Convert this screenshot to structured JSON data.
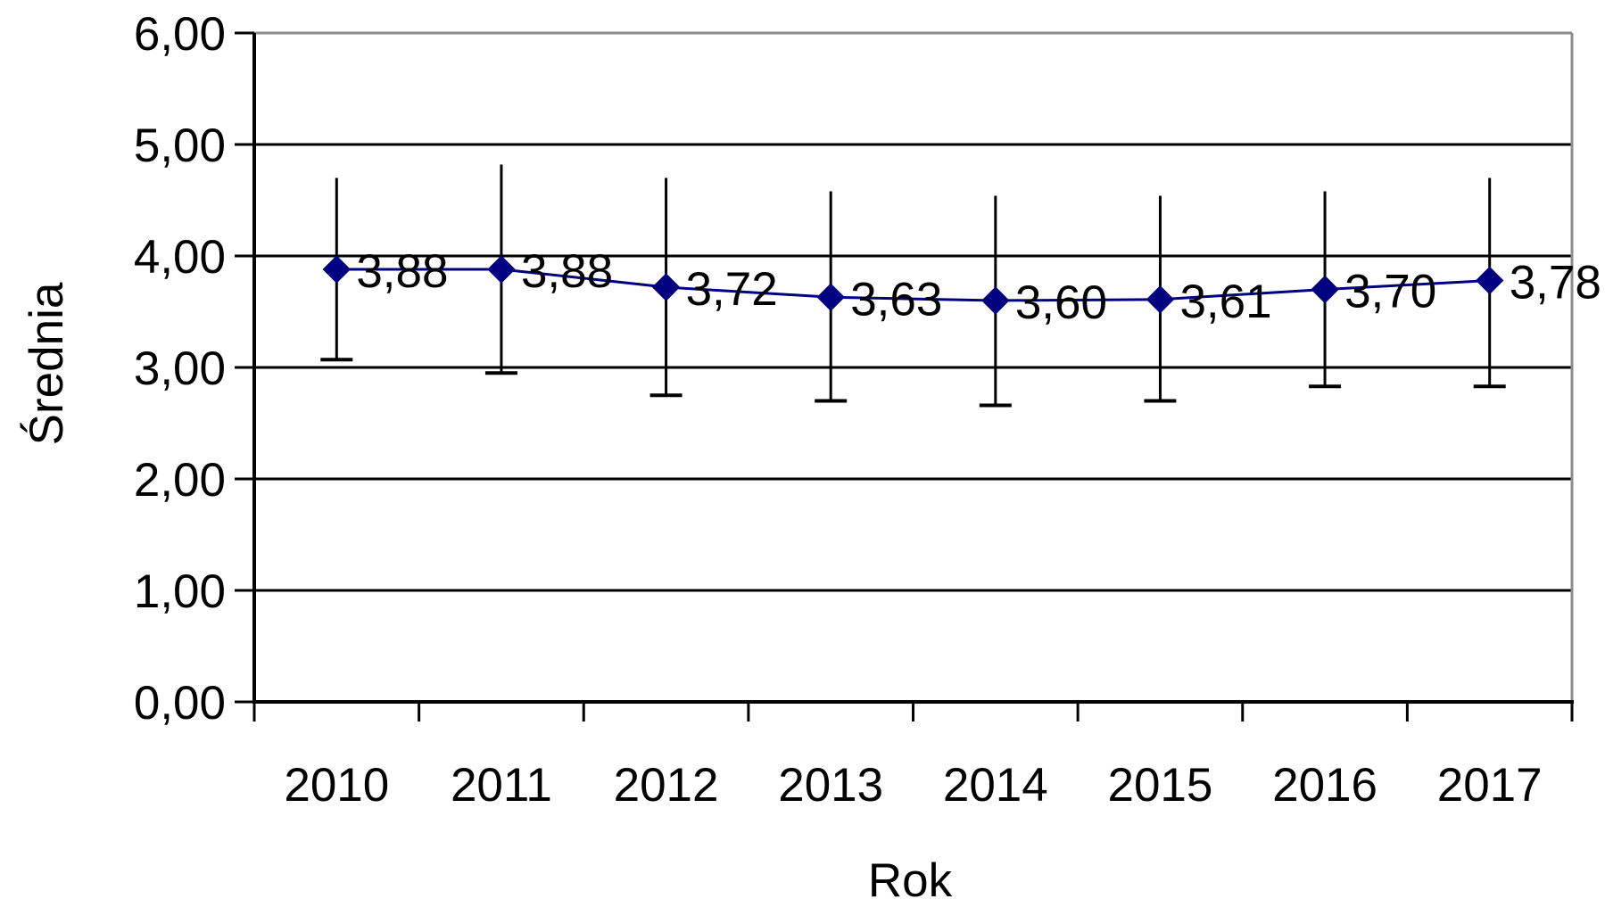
{
  "chart_data": {
    "type": "line",
    "title": "",
    "xlabel": "Rok",
    "ylabel": "Średnia",
    "ylim": [
      0,
      6
    ],
    "y_ticks": [
      "0,00",
      "1,00",
      "2,00",
      "3,00",
      "4,00",
      "5,00",
      "6,00"
    ],
    "categories": [
      "2010",
      "2011",
      "2012",
      "2013",
      "2014",
      "2015",
      "2016",
      "2017"
    ],
    "series": [
      {
        "values": [
          3.88,
          3.88,
          3.72,
          3.63,
          3.6,
          3.61,
          3.7,
          3.78
        ],
        "labels": [
          "3,88",
          "3,88",
          "3,72",
          "3,63",
          "3,60",
          "3,61",
          "3,70",
          "3,78"
        ],
        "error_low": [
          3.07,
          2.95,
          2.75,
          2.7,
          2.66,
          2.7,
          2.83,
          2.83
        ],
        "error_high": [
          4.7,
          4.82,
          4.7,
          4.58,
          4.54,
          4.54,
          4.58,
          4.7
        ],
        "color": "#000080",
        "marker": "diamond"
      }
    ],
    "grid": true,
    "legend": "none"
  }
}
